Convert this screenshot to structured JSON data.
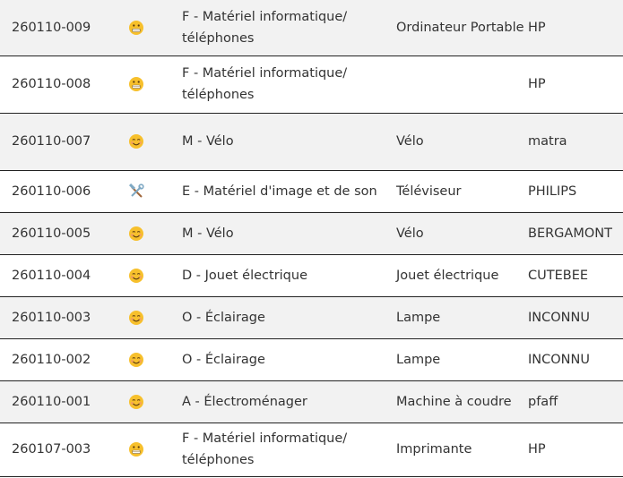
{
  "rows": [
    {
      "id": "260110-009",
      "icon": "grimacing-face-icon",
      "category": "F - Matériel informatique/ téléphones",
      "type": "Ordinateur Portable",
      "brand": "HP",
      "h": 62
    },
    {
      "id": "260110-008",
      "icon": "grimacing-face-icon",
      "category": "F - Matériel informatique/ téléphones",
      "type": "",
      "brand": "HP",
      "h": 64
    },
    {
      "id": "260110-007",
      "icon": "smiling-face-icon",
      "category": "M - Vélo",
      "type": "Vélo",
      "brand": "matra",
      "h": 64
    },
    {
      "id": "260110-006",
      "icon": "hammer-wrench-icon",
      "category": "E - Matériel d'image et de son",
      "type": "Téléviseur",
      "brand": "PHILIPS",
      "h": 47
    },
    {
      "id": "260110-005",
      "icon": "smiling-face-icon",
      "category": "M - Vélo",
      "type": "Vélo",
      "brand": "BERGAMONT",
      "h": 47
    },
    {
      "id": "260110-004",
      "icon": "smiling-face-icon",
      "category": "D - Jouet électrique",
      "type": "Jouet électrique",
      "brand": "CUTEBEE",
      "h": 47
    },
    {
      "id": "260110-003",
      "icon": "smiling-face-icon",
      "category": "O - Éclairage",
      "type": "Lampe",
      "brand": "INCONNU",
      "h": 47
    },
    {
      "id": "260110-002",
      "icon": "smiling-face-icon",
      "category": "O - Éclairage",
      "type": "Lampe",
      "brand": "INCONNU",
      "h": 47
    },
    {
      "id": "260110-001",
      "icon": "smiling-face-icon",
      "category": "A - Électroménager",
      "type": "Machine à coudre",
      "brand": "pfaff",
      "h": 47
    },
    {
      "id": "260107-003",
      "icon": "grimacing-face-icon",
      "category": "F - Matériel informatique/ téléphones",
      "type": "Imprimante",
      "brand": "HP",
      "h": 60
    }
  ]
}
